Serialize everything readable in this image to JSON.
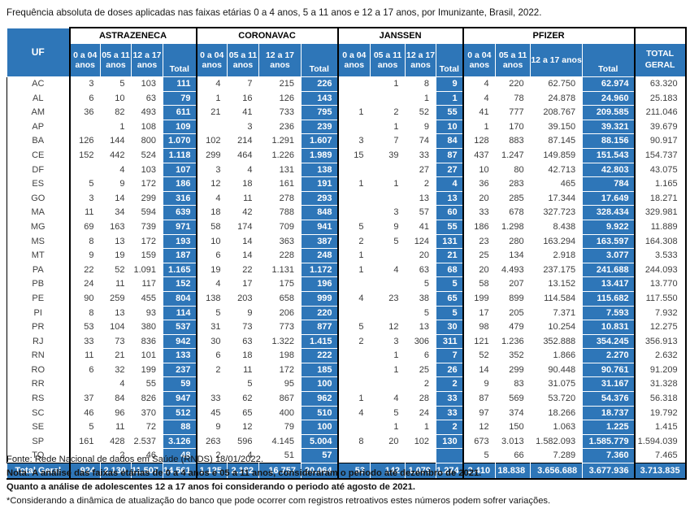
{
  "title": "Frequência absoluta de doses aplicadas nas faixas etárias 0 a 4 anos, 5 a 11 anos e 12 a 17 anos, por Imunizante, Brasil, 2022.",
  "colors": {
    "header_blue": "#2e76b8",
    "body_text": "#3b3b3b",
    "border_black": "#000000"
  },
  "table": {
    "uf_header": "UF",
    "total_geral_header": "TOTAL GERAL",
    "groups": [
      "ASTRAZENECA",
      "CORONAVAC",
      "JANSSEN",
      "PFIZER"
    ],
    "age_cols": [
      "0 a 04 anos",
      "05 a 11 anos",
      "12 a 17 anos",
      "Total"
    ],
    "rows": [
      [
        "AC",
        "3",
        "5",
        "103",
        "111",
        "4",
        "7",
        "215",
        "226",
        "",
        "1",
        "8",
        "9",
        "4",
        "220",
        "62.750",
        "62.974",
        "63.320"
      ],
      [
        "AL",
        "6",
        "10",
        "63",
        "79",
        "1",
        "16",
        "126",
        "143",
        "",
        "",
        "1",
        "1",
        "4",
        "78",
        "24.878",
        "24.960",
        "25.183"
      ],
      [
        "AM",
        "36",
        "82",
        "493",
        "611",
        "21",
        "41",
        "733",
        "795",
        "1",
        "2",
        "52",
        "55",
        "41",
        "777",
        "208.767",
        "209.585",
        "211.046"
      ],
      [
        "AP",
        "",
        "1",
        "108",
        "109",
        "",
        "3",
        "236",
        "239",
        "",
        "1",
        "9",
        "10",
        "1",
        "170",
        "39.150",
        "39.321",
        "39.679"
      ],
      [
        "BA",
        "126",
        "144",
        "800",
        "1.070",
        "102",
        "214",
        "1.291",
        "1.607",
        "3",
        "7",
        "74",
        "84",
        "128",
        "883",
        "87.145",
        "88.156",
        "90.917"
      ],
      [
        "CE",
        "152",
        "442",
        "524",
        "1.118",
        "299",
        "464",
        "1.226",
        "1.989",
        "15",
        "39",
        "33",
        "87",
        "437",
        "1.247",
        "149.859",
        "151.543",
        "154.737"
      ],
      [
        "DF",
        "",
        "4",
        "103",
        "107",
        "3",
        "4",
        "131",
        "138",
        "",
        "",
        "27",
        "27",
        "10",
        "80",
        "42.713",
        "42.803",
        "43.075"
      ],
      [
        "ES",
        "5",
        "9",
        "172",
        "186",
        "12",
        "18",
        "161",
        "191",
        "1",
        "1",
        "2",
        "4",
        "36",
        "283",
        "465",
        "784",
        "1.165"
      ],
      [
        "GO",
        "3",
        "14",
        "299",
        "316",
        "4",
        "11",
        "278",
        "293",
        "",
        "",
        "13",
        "13",
        "20",
        "285",
        "17.344",
        "17.649",
        "18.271"
      ],
      [
        "MA",
        "11",
        "34",
        "594",
        "639",
        "18",
        "42",
        "788",
        "848",
        "",
        "3",
        "57",
        "60",
        "33",
        "678",
        "327.723",
        "328.434",
        "329.981"
      ],
      [
        "MG",
        "69",
        "163",
        "739",
        "971",
        "58",
        "174",
        "709",
        "941",
        "5",
        "9",
        "41",
        "55",
        "186",
        "1.298",
        "8.438",
        "9.922",
        "11.889"
      ],
      [
        "MS",
        "8",
        "13",
        "172",
        "193",
        "10",
        "14",
        "363",
        "387",
        "2",
        "5",
        "124",
        "131",
        "23",
        "280",
        "163.294",
        "163.597",
        "164.308"
      ],
      [
        "MT",
        "9",
        "19",
        "159",
        "187",
        "6",
        "14",
        "228",
        "248",
        "1",
        "",
        "20",
        "21",
        "25",
        "134",
        "2.918",
        "3.077",
        "3.533"
      ],
      [
        "PA",
        "22",
        "52",
        "1.091",
        "1.165",
        "19",
        "22",
        "1.131",
        "1.172",
        "1",
        "4",
        "63",
        "68",
        "20",
        "4.493",
        "237.175",
        "241.688",
        "244.093"
      ],
      [
        "PB",
        "24",
        "11",
        "117",
        "152",
        "4",
        "17",
        "175",
        "196",
        "",
        "",
        "5",
        "5",
        "58",
        "207",
        "13.152",
        "13.417",
        "13.770"
      ],
      [
        "PE",
        "90",
        "259",
        "455",
        "804",
        "138",
        "203",
        "658",
        "999",
        "4",
        "23",
        "38",
        "65",
        "199",
        "899",
        "114.584",
        "115.682",
        "117.550"
      ],
      [
        "PI",
        "8",
        "13",
        "93",
        "114",
        "5",
        "9",
        "206",
        "220",
        "",
        "",
        "5",
        "5",
        "17",
        "205",
        "7.371",
        "7.593",
        "7.932"
      ],
      [
        "PR",
        "53",
        "104",
        "380",
        "537",
        "31",
        "73",
        "773",
        "877",
        "5",
        "12",
        "13",
        "30",
        "98",
        "479",
        "10.254",
        "10.831",
        "12.275"
      ],
      [
        "RJ",
        "33",
        "73",
        "836",
        "942",
        "30",
        "63",
        "1.322",
        "1.415",
        "2",
        "3",
        "306",
        "311",
        "121",
        "1.236",
        "352.888",
        "354.245",
        "356.913"
      ],
      [
        "RN",
        "11",
        "21",
        "101",
        "133",
        "6",
        "18",
        "198",
        "222",
        "",
        "1",
        "6",
        "7",
        "52",
        "352",
        "1.866",
        "2.270",
        "2.632"
      ],
      [
        "RO",
        "6",
        "32",
        "199",
        "237",
        "2",
        "11",
        "172",
        "185",
        "",
        "1",
        "25",
        "26",
        "14",
        "299",
        "90.448",
        "90.761",
        "91.209"
      ],
      [
        "RR",
        "",
        "4",
        "55",
        "59",
        "",
        "5",
        "95",
        "100",
        "",
        "",
        "2",
        "2",
        "9",
        "83",
        "31.075",
        "31.167",
        "31.328"
      ],
      [
        "RS",
        "37",
        "84",
        "826",
        "947",
        "33",
        "62",
        "867",
        "962",
        "1",
        "4",
        "28",
        "33",
        "87",
        "569",
        "53.720",
        "54.376",
        "56.318"
      ],
      [
        "SC",
        "46",
        "96",
        "370",
        "512",
        "45",
        "65",
        "400",
        "510",
        "4",
        "5",
        "24",
        "33",
        "97",
        "374",
        "18.266",
        "18.737",
        "19.792"
      ],
      [
        "SE",
        "5",
        "11",
        "72",
        "88",
        "9",
        "12",
        "79",
        "100",
        "",
        "1",
        "1",
        "2",
        "12",
        "150",
        "1.063",
        "1.225",
        "1.415"
      ],
      [
        "SP",
        "161",
        "428",
        "2.537",
        "3.126",
        "263",
        "596",
        "4.145",
        "5.004",
        "8",
        "20",
        "102",
        "130",
        "673",
        "3.013",
        "1.582.093",
        "1.585.779",
        "1.594.039"
      ],
      [
        "TO",
        "",
        "2",
        "46",
        "48",
        "2",
        "4",
        "51",
        "57",
        "",
        "",
        "",
        "",
        "5",
        "66",
        "7.289",
        "7.360",
        "7.465"
      ]
    ],
    "total_row": [
      "Total Geral",
      "924",
      "2.130",
      "11.507",
      "14.561",
      "1.125",
      "2.182",
      "16.757",
      "20.064",
      "53",
      "142",
      "1.079",
      "1.274",
      "2.410",
      "18.838",
      "3.656.688",
      "3.677.936",
      "3.713.835"
    ]
  },
  "footer": {
    "fonte": "Fonte: Rede Nacional de dados em Saúde (RNDS) 18/01/2022.",
    "nota": "Nota: A análise das faixas etárias de 0 a 4 anos e 05 a 11 anos, consideraram o periodo até dezembro de 2021.",
    "quanto": "Quanto a análise de adolescentes 12 a 17 anos foi considerando o periodo até agosto de 2021.",
    "consideracao": "*Considerando a dinâmica de atualização do banco que pode ocorrer com registros retroativos estes números podem sofrer variações."
  }
}
